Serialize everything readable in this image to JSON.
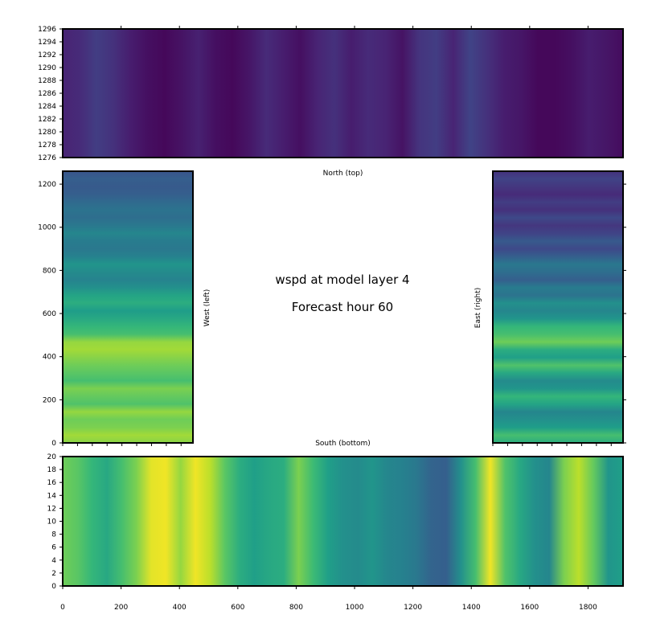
{
  "chart_data": {
    "type": "heatmap",
    "colormap": "viridis",
    "title": "wspd at model layer 4",
    "subtitle": "Forecast hour 60",
    "panels": [
      {
        "id": "north",
        "label": "North (top)",
        "x_range": [
          0,
          1920
        ],
        "y_range": [
          1276,
          1296
        ],
        "x_ticks": [],
        "y_ticks": [
          "1276",
          "1278",
          "1280",
          "1282",
          "1284",
          "1286",
          "1288",
          "1290",
          "1292",
          "1294",
          "1296"
        ],
        "stripe_orientation": "vertical",
        "profile": [
          0.1,
          0.12,
          0.18,
          0.14,
          0.08,
          0.04,
          0.02,
          0.05,
          0.09,
          0.04,
          0.02,
          0.06,
          0.12,
          0.08,
          0.04,
          0.1,
          0.14,
          0.08,
          0.12,
          0.1,
          0.05,
          0.15,
          0.18,
          0.1,
          0.2,
          0.14,
          0.08,
          0.06,
          0.02,
          0.02,
          0.04,
          0.08,
          0.06,
          0.03
        ]
      },
      {
        "id": "west",
        "label": "West (left)",
        "x_range": [
          0,
          440
        ],
        "y_range": [
          0,
          1260
        ],
        "x_ticks": [],
        "y_ticks": [
          "0",
          "200",
          "400",
          "600",
          "800",
          "1000",
          "1200"
        ],
        "stripe_orientation": "horizontal",
        "profile": [
          0.82,
          0.86,
          0.8,
          0.78,
          0.84,
          0.72,
          0.76,
          0.8,
          0.7,
          0.74,
          0.78,
          0.82,
          0.86,
          0.84,
          0.7,
          0.66,
          0.6,
          0.55,
          0.62,
          0.58,
          0.5,
          0.45,
          0.48,
          0.52,
          0.44,
          0.4,
          0.42,
          0.46,
          0.4,
          0.36,
          0.38,
          0.34,
          0.3,
          0.28,
          0.3,
          0.26
        ]
      },
      {
        "id": "east",
        "label": "East (right)",
        "x_range": [
          0,
          440
        ],
        "y_range": [
          0,
          1260
        ],
        "x_ticks": [],
        "y_ticks": [],
        "stripe_orientation": "horizontal",
        "profile": [
          0.62,
          0.7,
          0.55,
          0.5,
          0.46,
          0.58,
          0.66,
          0.52,
          0.48,
          0.6,
          0.72,
          0.56,
          0.62,
          0.78,
          0.7,
          0.66,
          0.52,
          0.46,
          0.5,
          0.38,
          0.42,
          0.3,
          0.36,
          0.4,
          0.3,
          0.22,
          0.28,
          0.2,
          0.16,
          0.22,
          0.14,
          0.18,
          0.12,
          0.16,
          0.2,
          0.14
        ]
      },
      {
        "id": "south",
        "label": "South (bottom)",
        "x_range": [
          0,
          1920
        ],
        "y_range": [
          0,
          20
        ],
        "x_ticks": [
          "0",
          "200",
          "400",
          "600",
          "800",
          "1000",
          "1200",
          "1400",
          "1600",
          "1800"
        ],
        "y_ticks": [
          "0",
          "2",
          "4",
          "6",
          "8",
          "10",
          "12",
          "14",
          "16",
          "18",
          "20"
        ],
        "stripe_orientation": "vertical",
        "profile": [
          0.78,
          0.74,
          0.66,
          0.6,
          0.7,
          0.8,
          0.96,
          0.98,
          0.84,
          0.98,
          0.9,
          0.74,
          0.62,
          0.56,
          0.6,
          0.62,
          0.8,
          0.68,
          0.56,
          0.5,
          0.48,
          0.52,
          0.46,
          0.44,
          0.4,
          0.32,
          0.3,
          0.5,
          0.7,
          0.98,
          0.72,
          0.6,
          0.5,
          0.46,
          0.8,
          0.9,
          0.76,
          0.52,
          0.56
        ]
      }
    ]
  }
}
